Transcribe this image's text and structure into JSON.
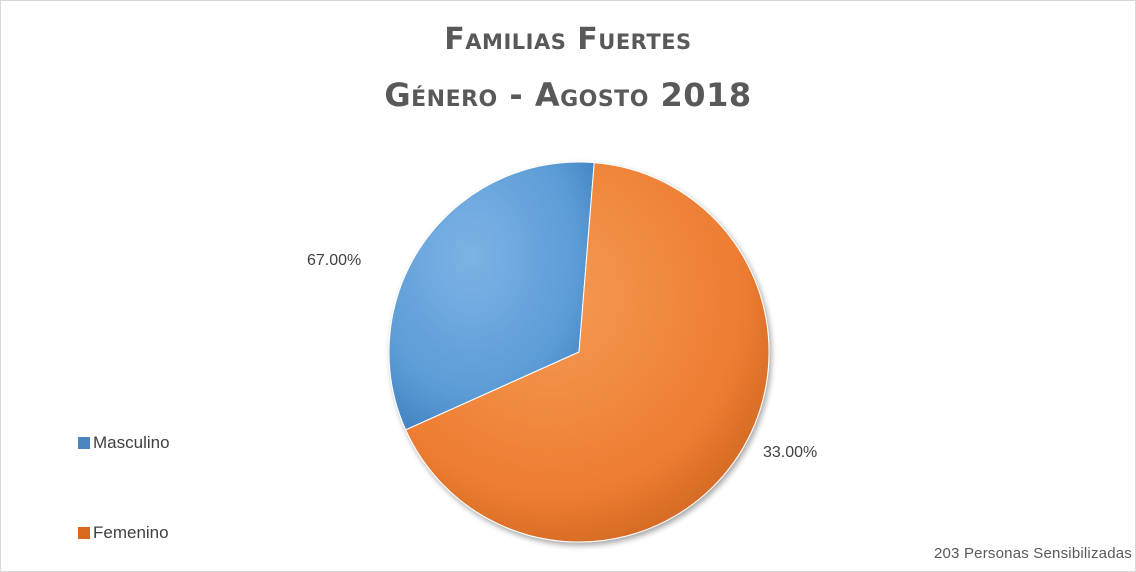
{
  "chart_data": {
    "type": "pie",
    "title": "Familias Fuertes",
    "subtitle": "Género - Agosto 2018",
    "categories": [
      "Masculino",
      "Femenino"
    ],
    "values": [
      33.0,
      67.0
    ],
    "value_labels": [
      "33.00%",
      "67.00%"
    ],
    "colors": [
      "#5b9bd5",
      "#ed7d31"
    ],
    "legend_position": "left",
    "note": "203 Personas Sensibilizadas"
  }
}
